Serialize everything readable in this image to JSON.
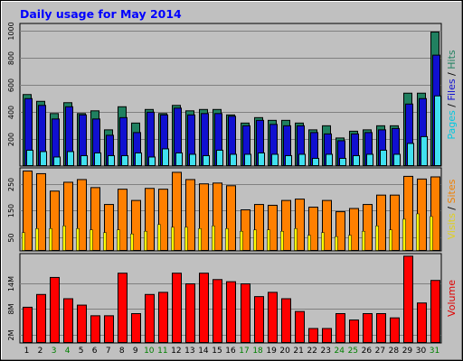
{
  "chart_data": {
    "type": "bar",
    "title": "Daily usage for May 2014",
    "categories": [
      "1",
      "2",
      "3",
      "4",
      "5",
      "6",
      "7",
      "8",
      "9",
      "10",
      "11",
      "12",
      "13",
      "14",
      "15",
      "16",
      "17",
      "18",
      "19",
      "20",
      "21",
      "22",
      "23",
      "24",
      "25",
      "26",
      "27",
      "28",
      "29",
      "30",
      "31"
    ],
    "weekend_days": [
      "3",
      "4",
      "10",
      "11",
      "17",
      "18",
      "24",
      "25",
      "31"
    ],
    "panels": [
      {
        "name": "hits-panel",
        "side_label_parts": [
          {
            "text": "Pages",
            "color": "#00c8e0"
          },
          {
            "text": " / ",
            "color": "#000000"
          },
          {
            "text": "Files",
            "color": "#1010d0"
          },
          {
            "text": " / ",
            "color": "#000000"
          },
          {
            "text": "Hits",
            "color": "#208060"
          }
        ],
        "y_ticks": [
          200,
          400,
          600,
          800,
          1000
        ],
        "y_tick_labels": [
          "200",
          "400",
          "600",
          "800",
          "1000"
        ],
        "ylim": [
          0,
          1050
        ],
        "series": [
          {
            "name": "Hits",
            "color": "#208060",
            "values": [
              530,
              480,
              390,
              470,
              390,
              410,
              270,
              440,
              320,
              420,
              390,
              450,
              410,
              420,
              420,
              380,
              320,
              360,
              340,
              340,
              320,
              270,
              300,
              210,
              260,
              270,
              300,
              300,
              540,
              540,
              990
            ]
          },
          {
            "name": "Files",
            "color": "#1010d0",
            "values": [
              500,
              450,
              350,
              440,
              380,
              350,
              230,
              360,
              250,
              400,
              380,
              430,
              380,
              390,
              390,
              370,
              300,
              340,
              310,
              300,
              300,
              250,
              240,
              190,
              240,
              250,
              270,
              280,
              460,
              500,
              820
            ]
          },
          {
            "name": "Pages",
            "color": "#40e0f0",
            "values": [
              120,
              110,
              70,
              110,
              80,
              100,
              80,
              80,
              100,
              70,
              130,
              100,
              90,
              80,
              120,
              90,
              90,
              100,
              90,
              80,
              90,
              60,
              90,
              60,
              80,
              90,
              120,
              90,
              170,
              220,
              520
            ]
          }
        ]
      },
      {
        "name": "visits-panel",
        "side_label_parts": [
          {
            "text": "Visits",
            "color": "#e0d020"
          },
          {
            "text": " / ",
            "color": "#000000"
          },
          {
            "text": "Sites",
            "color": "#f08000"
          }
        ],
        "y_ticks": [
          50,
          150,
          250
        ],
        "y_tick_labels": [
          "50",
          "150",
          "250"
        ],
        "ylim": [
          0,
          310
        ],
        "series": [
          {
            "name": "Sites",
            "color": "#ff8000",
            "values": [
              300,
              290,
              225,
              258,
              268,
              238,
              175,
              232,
              190,
              235,
              232,
              295,
              268,
              252,
              255,
              245,
              155,
              175,
              172,
              190,
              195,
              165,
              190,
              148,
              160,
              175,
              210,
              210,
              280,
              270,
              278
            ]
          },
          {
            "name": "Visits",
            "color": "#ffff00",
            "values": [
              70,
              85,
              85,
              95,
              85,
              80,
              70,
              80,
              65,
              75,
              100,
              90,
              90,
              85,
              95,
              85,
              75,
              80,
              80,
              75,
              85,
              60,
              70,
              55,
              60,
              75,
              95,
              80,
              120,
              140,
              130
            ]
          }
        ]
      },
      {
        "name": "volume-panel",
        "side_label_parts": [
          {
            "text": "Volume",
            "color": "#e00000"
          }
        ],
        "y_ticks": [
          2,
          8,
          14
        ],
        "y_tick_labels": [
          "2M",
          "8M",
          "14M"
        ],
        "ylim": [
          0,
          21
        ],
        "series": [
          {
            "name": "Volume",
            "color": "#ff0000",
            "values": [
              8.5,
              11.5,
              15.5,
              10.5,
              9,
              6.5,
              6.5,
              16.5,
              7,
              11.5,
              12,
              16.5,
              14,
              16.5,
              15,
              14.5,
              14,
              11,
              12,
              10.5,
              7.5,
              3.5,
              3.5,
              7,
              5.5,
              7,
              7,
              6,
              20.5,
              9.5,
              14.8
            ]
          }
        ]
      }
    ]
  }
}
